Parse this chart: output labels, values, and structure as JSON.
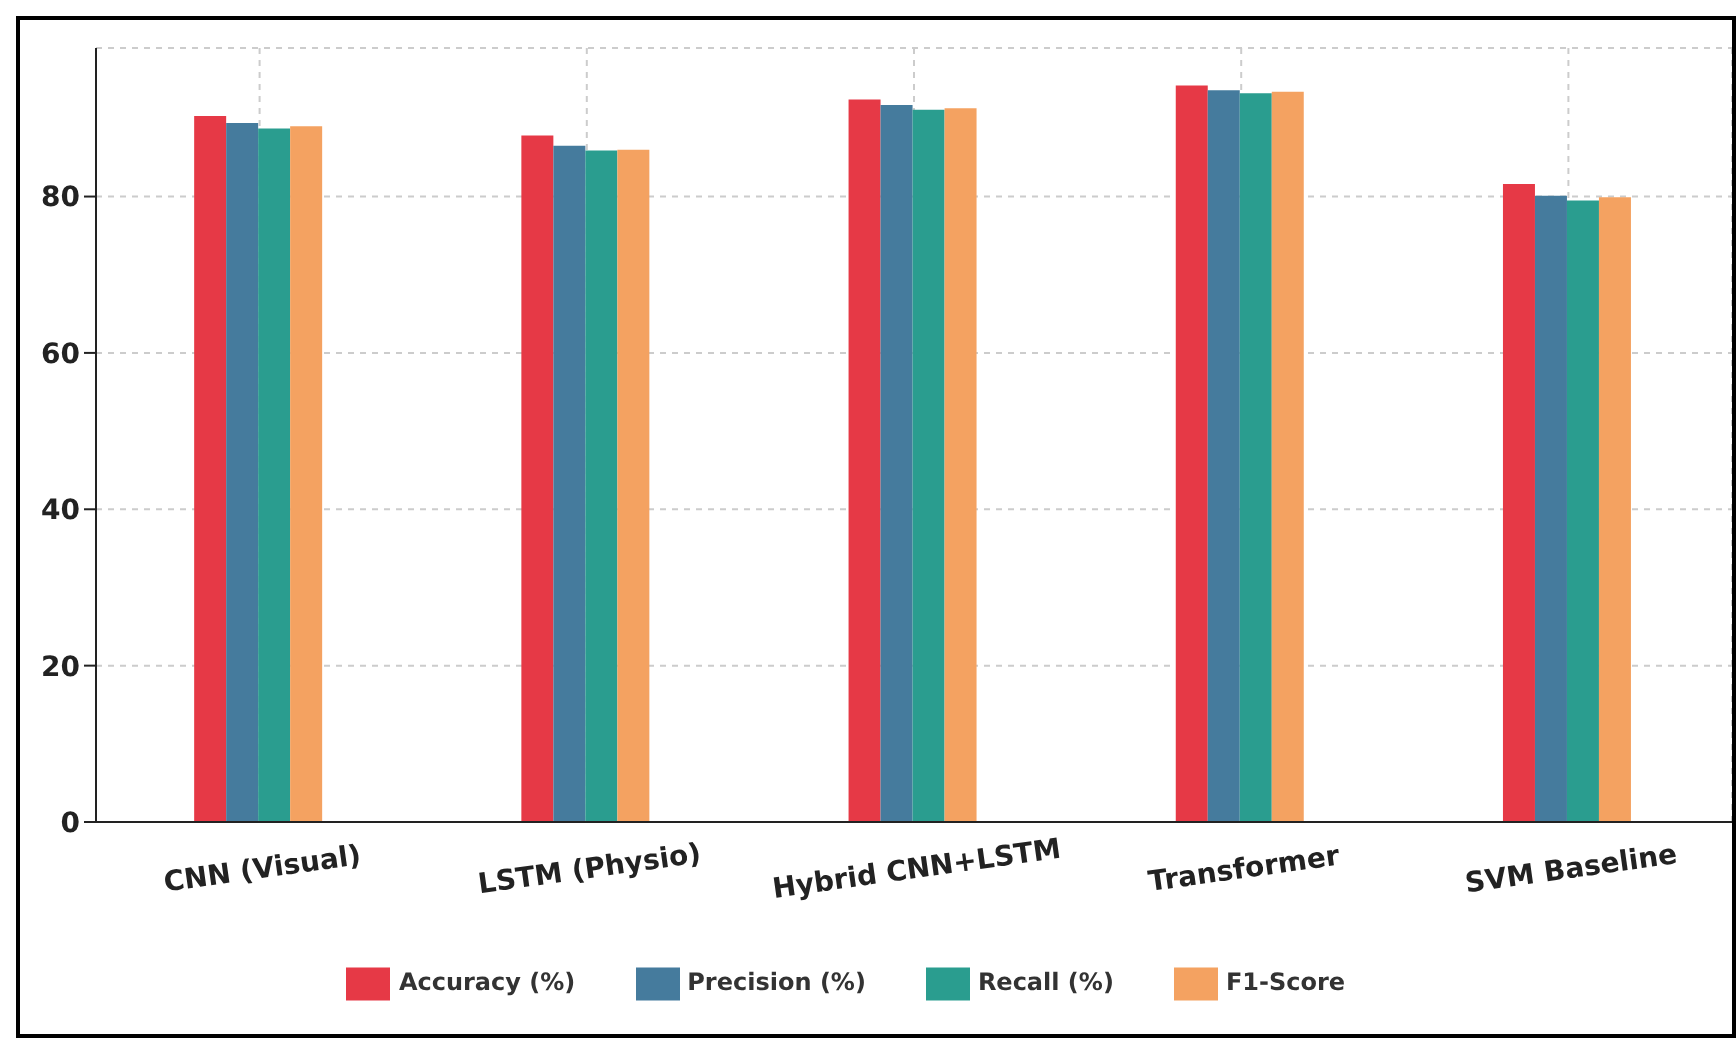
{
  "chart_data": {
    "type": "bar",
    "categories": [
      "CNN (Visual)",
      "LSTM (Physio)",
      "Hybrid CNN+LSTM",
      "Transformer",
      "SVM Baseline"
    ],
    "series": [
      {
        "name": "Accuracy (%)",
        "color": "#e63946",
        "values": [
          90.3,
          87.8,
          92.4,
          94.2,
          81.6
        ]
      },
      {
        "name": "Precision (%)",
        "color": "#457b9d",
        "values": [
          89.4,
          86.5,
          91.7,
          93.6,
          80.1
        ]
      },
      {
        "name": "Recall (%)",
        "color": "#2a9d8f",
        "values": [
          88.7,
          85.9,
          91.1,
          93.2,
          79.5
        ]
      },
      {
        "name": "F1-Score",
        "color": "#f4a261",
        "values": [
          89.0,
          86.0,
          91.3,
          93.4,
          79.9
        ]
      }
    ],
    "ylim": [
      0,
      99
    ],
    "yticks": [
      0,
      20,
      40,
      60,
      80
    ],
    "grid": true,
    "legend": "bottom"
  }
}
